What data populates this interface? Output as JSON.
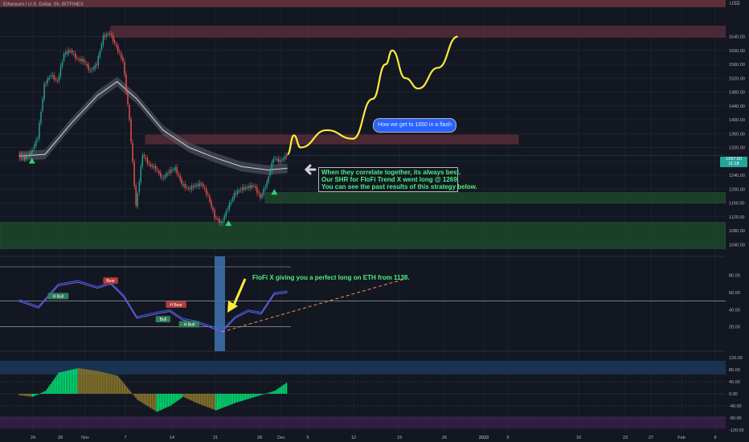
{
  "header": {
    "symbol_title": "Ethereum / U.S. Dollar, 5h, BITFINEX",
    "currency": "USD"
  },
  "price_box": {
    "price": "1297.50",
    "countdown": "11:18"
  },
  "annotations": {
    "bubble": "How we get to 1650 in a flash",
    "strategy_lines": [
      "When they correlate together, its always best.",
      "Our SHR for FloFi Trend X went long @ 1269.",
      "You can see the past results of this strategy below."
    ],
    "oscillator_note": "FloFi X giving you a perfect long on ETH from 1138."
  },
  "colors": {
    "background": "#131722",
    "bull": "#26a69a",
    "bear": "#ef5350",
    "annotation_text": "#4cf07e",
    "projection": "#ffeb3b",
    "resistance_zone": "#5d2f3a",
    "support_zone": "#1e4d2b",
    "highlight_column": "#3d6ea8"
  },
  "chart_data": [
    {
      "type": "candlestick",
      "title": "Ethereum / U.S. Dollar, 5h, BITFINEX",
      "y_axis": {
        "ticks": [
          1640,
          1600,
          1560,
          1520,
          1480,
          1440,
          1400,
          1360,
          1320,
          1280,
          1240,
          1200,
          1160,
          1120,
          1080,
          1040
        ],
        "unit": "USD"
      },
      "x_axis": {
        "ticks": [
          "24",
          "28",
          "Nov",
          "7",
          "14",
          "21",
          "28",
          "Dec",
          "5",
          "12",
          "19",
          "26",
          "2023",
          "5",
          "16",
          "23",
          "27",
          "Feb",
          "8"
        ]
      },
      "ohlc_close_path": [
        {
          "date": "Oct 22",
          "close": 1300
        },
        {
          "date": "Oct 23",
          "close": 1290
        },
        {
          "date": "Oct 24",
          "close": 1305
        },
        {
          "date": "Oct 25",
          "close": 1350
        },
        {
          "date": "Oct 26",
          "close": 1500
        },
        {
          "date": "Oct 27",
          "close": 1530
        },
        {
          "date": "Oct 28",
          "close": 1510
        },
        {
          "date": "Oct 29",
          "close": 1590
        },
        {
          "date": "Oct 30",
          "close": 1600
        },
        {
          "date": "Oct 31",
          "close": 1575
        },
        {
          "date": "Nov 1",
          "close": 1570
        },
        {
          "date": "Nov 2",
          "close": 1540
        },
        {
          "date": "Nov 3",
          "close": 1560
        },
        {
          "date": "Nov 4",
          "close": 1640
        },
        {
          "date": "Nov 5",
          "close": 1650
        },
        {
          "date": "Nov 6",
          "close": 1610
        },
        {
          "date": "Nov 7",
          "close": 1570
        },
        {
          "date": "Nov 8",
          "close": 1400
        },
        {
          "date": "Nov 9",
          "close": 1150
        },
        {
          "date": "Nov 10",
          "close": 1300
        },
        {
          "date": "Nov 11",
          "close": 1270
        },
        {
          "date": "Nov 12",
          "close": 1260
        },
        {
          "date": "Nov 13",
          "close": 1230
        },
        {
          "date": "Nov 14",
          "close": 1250
        },
        {
          "date": "Nov 15",
          "close": 1260
        },
        {
          "date": "Nov 16",
          "close": 1215
        },
        {
          "date": "Nov 17",
          "close": 1200
        },
        {
          "date": "Nov 18",
          "close": 1210
        },
        {
          "date": "Nov 19",
          "close": 1215
        },
        {
          "date": "Nov 20",
          "close": 1180
        },
        {
          "date": "Nov 21",
          "close": 1120
        },
        {
          "date": "Nov 22",
          "close": 1100
        },
        {
          "date": "Nov 23",
          "close": 1145
        },
        {
          "date": "Nov 24",
          "close": 1185
        },
        {
          "date": "Nov 25",
          "close": 1200
        },
        {
          "date": "Nov 26",
          "close": 1205
        },
        {
          "date": "Nov 27",
          "close": 1210
        },
        {
          "date": "Nov 28",
          "close": 1175
        },
        {
          "date": "Nov 29",
          "close": 1220
        },
        {
          "date": "Nov 30",
          "close": 1290
        },
        {
          "date": "Dec 1",
          "close": 1280
        },
        {
          "date": "Dec 2",
          "close": 1297.5
        }
      ],
      "moving_average": [
        {
          "date": "Oct 22",
          "value": 1295
        },
        {
          "date": "Oct 26",
          "value": 1300
        },
        {
          "date": "Oct 30",
          "value": 1390
        },
        {
          "date": "Nov 3",
          "value": 1470
        },
        {
          "date": "Nov 6",
          "value": 1510
        },
        {
          "date": "Nov 9",
          "value": 1460
        },
        {
          "date": "Nov 13",
          "value": 1370
        },
        {
          "date": "Nov 17",
          "value": 1320
        },
        {
          "date": "Nov 21",
          "value": 1290
        },
        {
          "date": "Nov 25",
          "value": 1265
        },
        {
          "date": "Nov 29",
          "value": 1255
        },
        {
          "date": "Dec 2",
          "value": 1260
        }
      ],
      "projection": [
        {
          "date": "Dec 2",
          "value": 1300
        },
        {
          "date": "Dec 3",
          "value": 1355
        },
        {
          "date": "Dec 4",
          "value": 1320
        },
        {
          "date": "Dec 8",
          "value": 1370
        },
        {
          "date": "Dec 12",
          "value": 1345
        },
        {
          "date": "Dec 15",
          "value": 1460
        },
        {
          "date": "Dec 17",
          "value": 1560
        },
        {
          "date": "Dec 18",
          "value": 1600
        },
        {
          "date": "Dec 20",
          "value": 1520
        },
        {
          "date": "Dec 22",
          "value": 1490
        },
        {
          "date": "Dec 25",
          "value": 1550
        },
        {
          "date": "Dec 28",
          "value": 1640
        }
      ],
      "zones": [
        {
          "kind": "resistance",
          "from": 1638,
          "to": 1670
        },
        {
          "kind": "resistance",
          "from": 1330,
          "to": 1356
        },
        {
          "kind": "support",
          "from": 1160,
          "to": 1190
        },
        {
          "kind": "support",
          "from": 1028,
          "to": 1104
        }
      ],
      "signals": [
        {
          "date": "Oct 24",
          "value": 1290,
          "kind": "long"
        },
        {
          "date": "Nov 23",
          "value": 1110,
          "kind": "long"
        },
        {
          "date": "Nov 30",
          "value": 1200,
          "kind": "long"
        }
      ],
      "last_price": 1297.5
    },
    {
      "type": "line",
      "title": "",
      "ylim": [
        0,
        100
      ],
      "y_axis": {
        "ticks": [
          80.0,
          60.0,
          40.0,
          20.0
        ]
      },
      "levels": [
        90,
        50,
        20
      ],
      "series": [
        {
          "values": [
            {
              "date": "Oct 22",
              "value": 50
            },
            {
              "date": "Oct 25",
              "value": 42
            },
            {
              "date": "Oct 28",
              "value": 68
            },
            {
              "date": "Oct 31",
              "value": 72
            },
            {
              "date": "Nov 3",
              "value": 65
            },
            {
              "date": "Nov 5",
              "value": 70
            },
            {
              "date": "Nov 7",
              "value": 55
            },
            {
              "date": "Nov 9",
              "value": 30
            },
            {
              "date": "Nov 12",
              "value": 35
            },
            {
              "date": "Nov 14",
              "value": 38
            },
            {
              "date": "Nov 16",
              "value": 28
            },
            {
              "date": "Nov 18",
              "value": 25
            },
            {
              "date": "Nov 20",
              "value": 20
            },
            {
              "date": "Nov 22",
              "value": 14
            },
            {
              "date": "Nov 24",
              "value": 30
            },
            {
              "date": "Nov 26",
              "value": 38
            },
            {
              "date": "Nov 28",
              "value": 35
            },
            {
              "date": "Nov 30",
              "value": 58
            },
            {
              "date": "Dec 2",
              "value": 60
            }
          ]
        }
      ],
      "trendline": {
        "from": {
          "date": "Nov 22",
          "value": 14
        },
        "to": {
          "date": "Dec 20",
          "value": 76
        }
      },
      "labels": [
        {
          "text": "Bear",
          "date": "Nov 5",
          "value": 73
        },
        {
          "text": "H Bull",
          "date": "Oct 28",
          "value": 55
        },
        {
          "text": "H Bear",
          "date": "Nov 15",
          "value": 45
        },
        {
          "text": "Bull",
          "date": "Nov 13",
          "value": 28
        },
        {
          "text": "H Bull",
          "date": "Nov 17",
          "value": 22
        }
      ]
    },
    {
      "type": "bar",
      "title": "",
      "ylim": [
        -120,
        120
      ],
      "y_axis": {
        "ticks": [
          120.0,
          80.0,
          40.0,
          0.0,
          -40.0,
          -80.0,
          -120.0
        ]
      },
      "series": [
        {
          "values": [
            {
              "date": "Oct 22",
              "value": -5
            },
            {
              "date": "Oct 24",
              "value": -10
            },
            {
              "date": "Oct 26",
              "value": 10
            },
            {
              "date": "Oct 28",
              "value": 70
            },
            {
              "date": "Oct 31",
              "value": 85
            },
            {
              "date": "Nov 3",
              "value": 75
            },
            {
              "date": "Nov 6",
              "value": 60
            },
            {
              "date": "Nov 9",
              "value": -20
            },
            {
              "date": "Nov 12",
              "value": -60
            },
            {
              "date": "Nov 14",
              "value": -40
            },
            {
              "date": "Nov 16",
              "value": -10
            },
            {
              "date": "Nov 18",
              "value": -30
            },
            {
              "date": "Nov 21",
              "value": -55
            },
            {
              "date": "Nov 24",
              "value": -30
            },
            {
              "date": "Nov 27",
              "value": -10
            },
            {
              "date": "Nov 30",
              "value": 10
            },
            {
              "date": "Dec 2",
              "value": 40
            }
          ]
        }
      ]
    }
  ]
}
